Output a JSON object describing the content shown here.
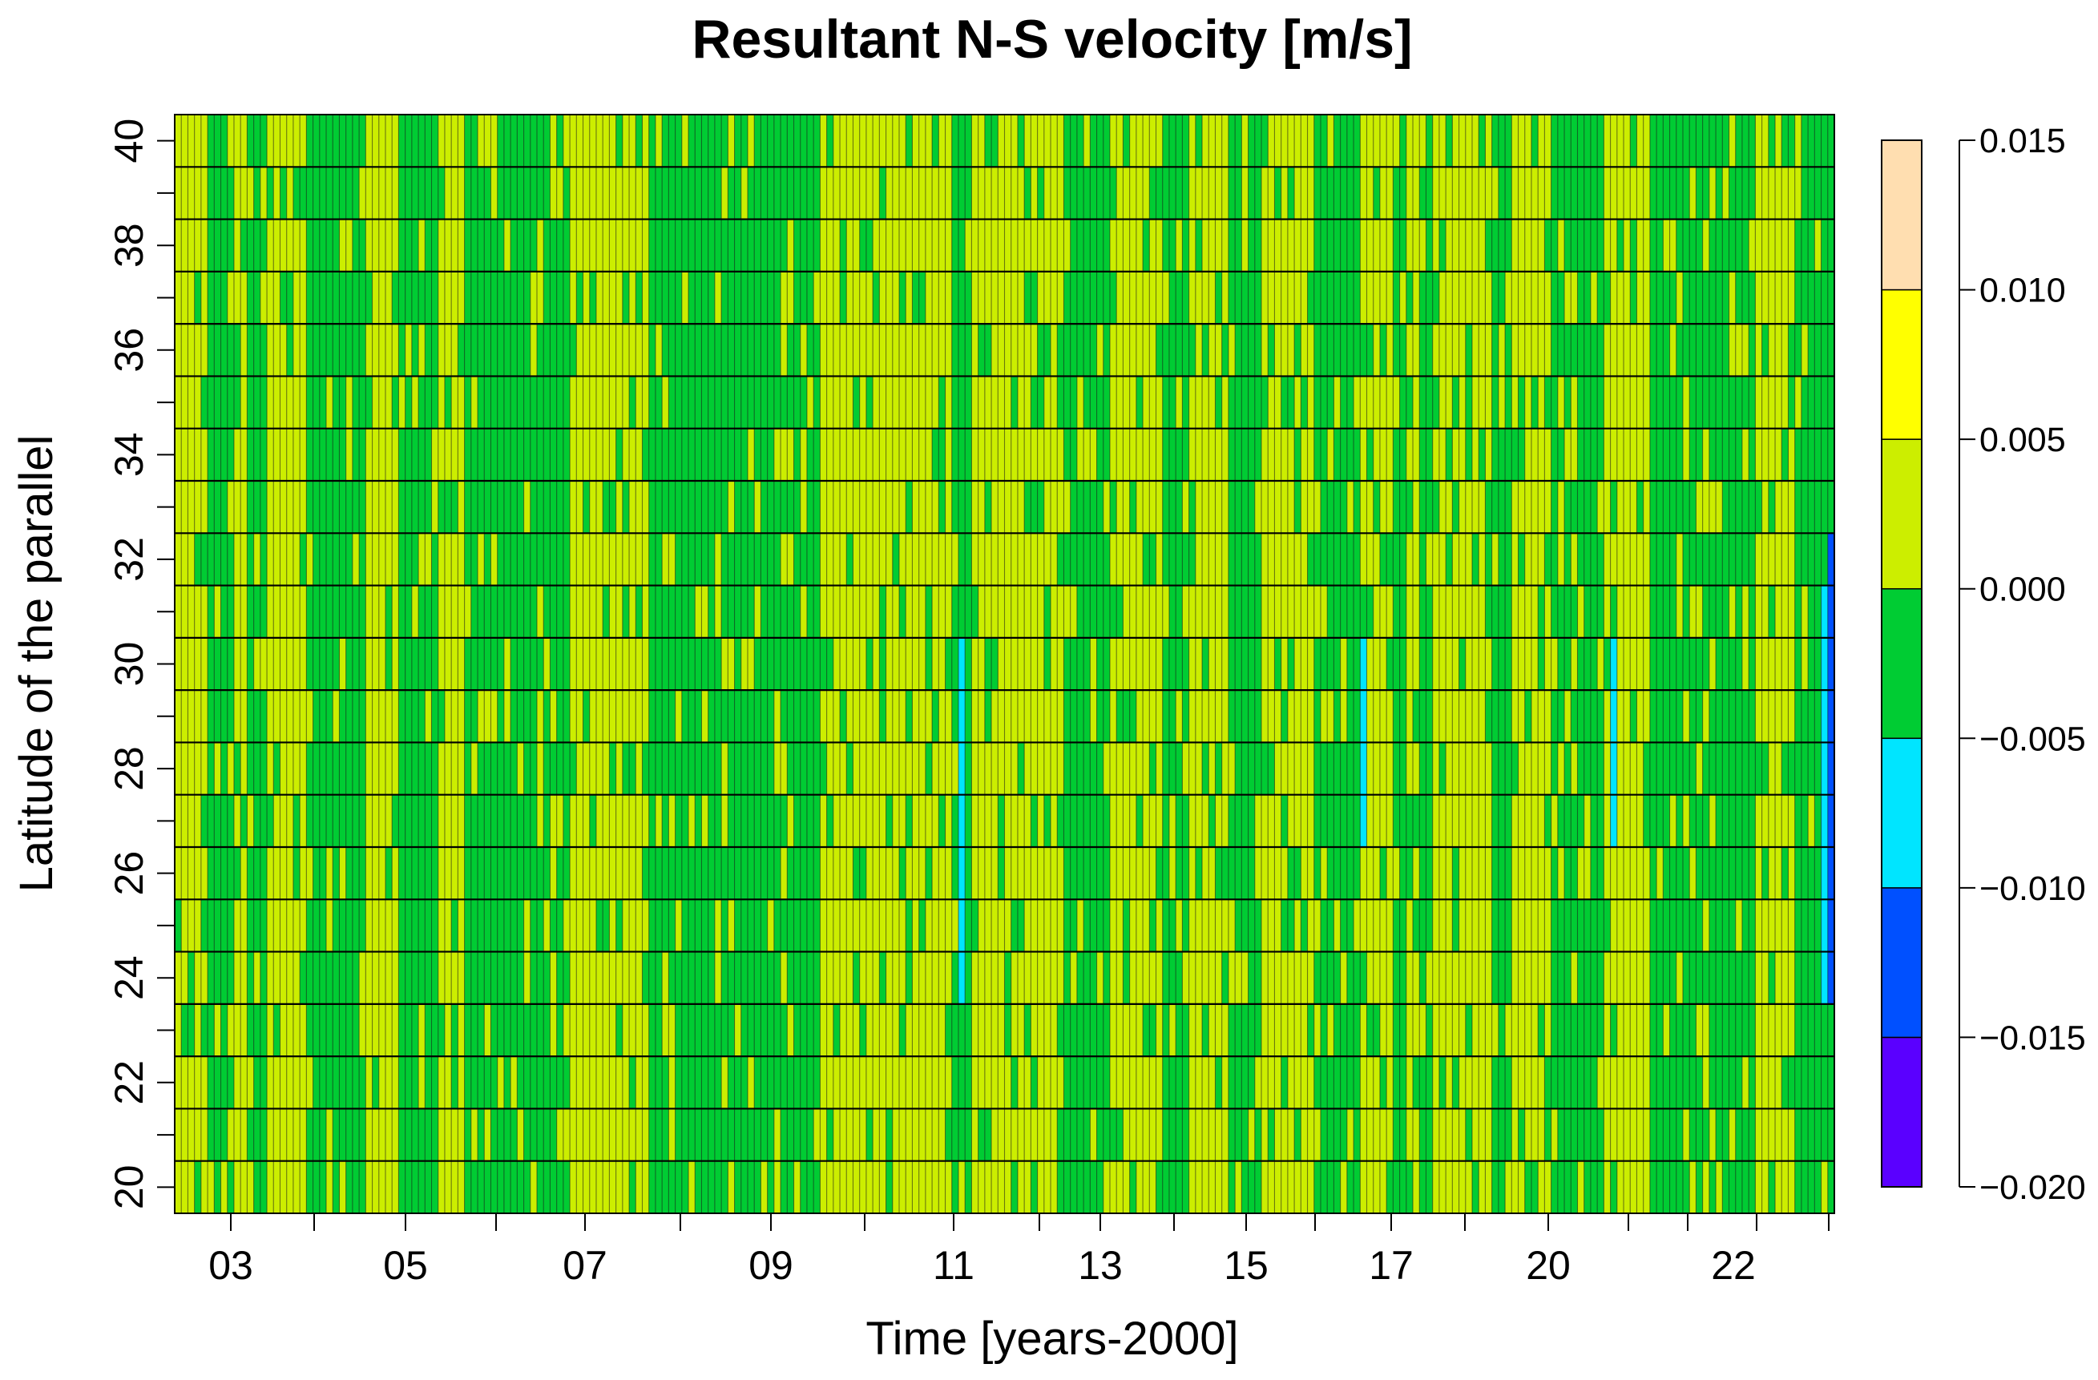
{
  "chart_data": {
    "type": "heatmap",
    "title": "Resultant N-S velocity [m/s]",
    "xlabel": "Time [years-2000]",
    "ylabel": "Latitude of the parallel",
    "xlim": [
      2.33,
      23.97
    ],
    "ylim": [
      19.5,
      40.5
    ],
    "x_tick_labels": [
      "03",
      "05",
      "07",
      "09",
      "11",
      "13",
      "15",
      "17",
      "20",
      "22"
    ],
    "y_ticks": [
      20,
      22,
      24,
      26,
      28,
      30,
      32,
      34,
      36,
      38,
      40
    ],
    "rows": 21,
    "columns": 252,
    "levels": [
      -0.02,
      -0.015,
      -0.01,
      -0.005,
      0.0,
      0.005,
      0.01,
      0.015
    ],
    "colorbar": {
      "tick_labels": [
        "0.015",
        "0.010",
        "0.005",
        "0.000",
        "−0.005",
        "−0.010",
        "−0.015",
        "−0.020"
      ],
      "bins": [
        {
          "range": [
            -0.02,
            -0.015
          ],
          "color": "#5a00ff"
        },
        {
          "range": [
            -0.015,
            -0.01
          ],
          "color": "#0050ff"
        },
        {
          "range": [
            -0.01,
            -0.005
          ],
          "color": "#00e5ff"
        },
        {
          "range": [
            -0.005,
            0.0
          ],
          "color": "#00cc33"
        },
        {
          "range": [
            0.0,
            0.005
          ],
          "color": "#ccee00"
        },
        {
          "range": [
            0.005,
            0.01
          ],
          "color": "#ffff00"
        },
        {
          "range": [
            0.01,
            0.015
          ],
          "color": "#ffdeb0"
        }
      ]
    },
    "approx_pattern": {
      "description": "monthly columns alternating mostly between the -0.005..0.000 bin and the 0.000..0.005 bin; occasional -0.010..-0.005 streaks",
      "yellow_column_blocks": [
        [
          0,
          5
        ],
        [
          9,
          11
        ],
        [
          14,
          20
        ],
        [
          29,
          34
        ],
        [
          40,
          44
        ],
        [
          60,
          72
        ],
        [
          98,
          118
        ],
        [
          121,
          135
        ],
        [
          142,
          150
        ],
        [
          154,
          160
        ],
        [
          165,
          173
        ],
        [
          180,
          185
        ],
        [
          187,
          189
        ],
        [
          191,
          200
        ],
        [
          203,
          209
        ],
        [
          217,
          224
        ],
        [
          240,
          246
        ]
      ],
      "green_column_blocks": [
        [
          5,
          9
        ],
        [
          11,
          14
        ],
        [
          20,
          29
        ],
        [
          34,
          40
        ],
        [
          44,
          60
        ],
        [
          72,
          98
        ],
        [
          118,
          121
        ],
        [
          135,
          142
        ],
        [
          150,
          154
        ],
        [
          160,
          165
        ],
        [
          173,
          180
        ],
        [
          185,
          187
        ],
        [
          189,
          191
        ],
        [
          200,
          203
        ],
        [
          209,
          217
        ],
        [
          224,
          240
        ],
        [
          246,
          252
        ]
      ],
      "cyan_streaks": [
        {
          "column": 119,
          "lat_range": [
            24,
            30
          ]
        },
        {
          "column": 180,
          "lat_range": [
            27,
            30
          ]
        },
        {
          "column": 218,
          "lat_range": [
            27,
            30
          ]
        },
        {
          "column": 250,
          "lat_range": [
            24,
            31
          ]
        }
      ],
      "blue_streaks": [
        {
          "column": 251,
          "lat_range": [
            24,
            32
          ]
        }
      ]
    }
  }
}
